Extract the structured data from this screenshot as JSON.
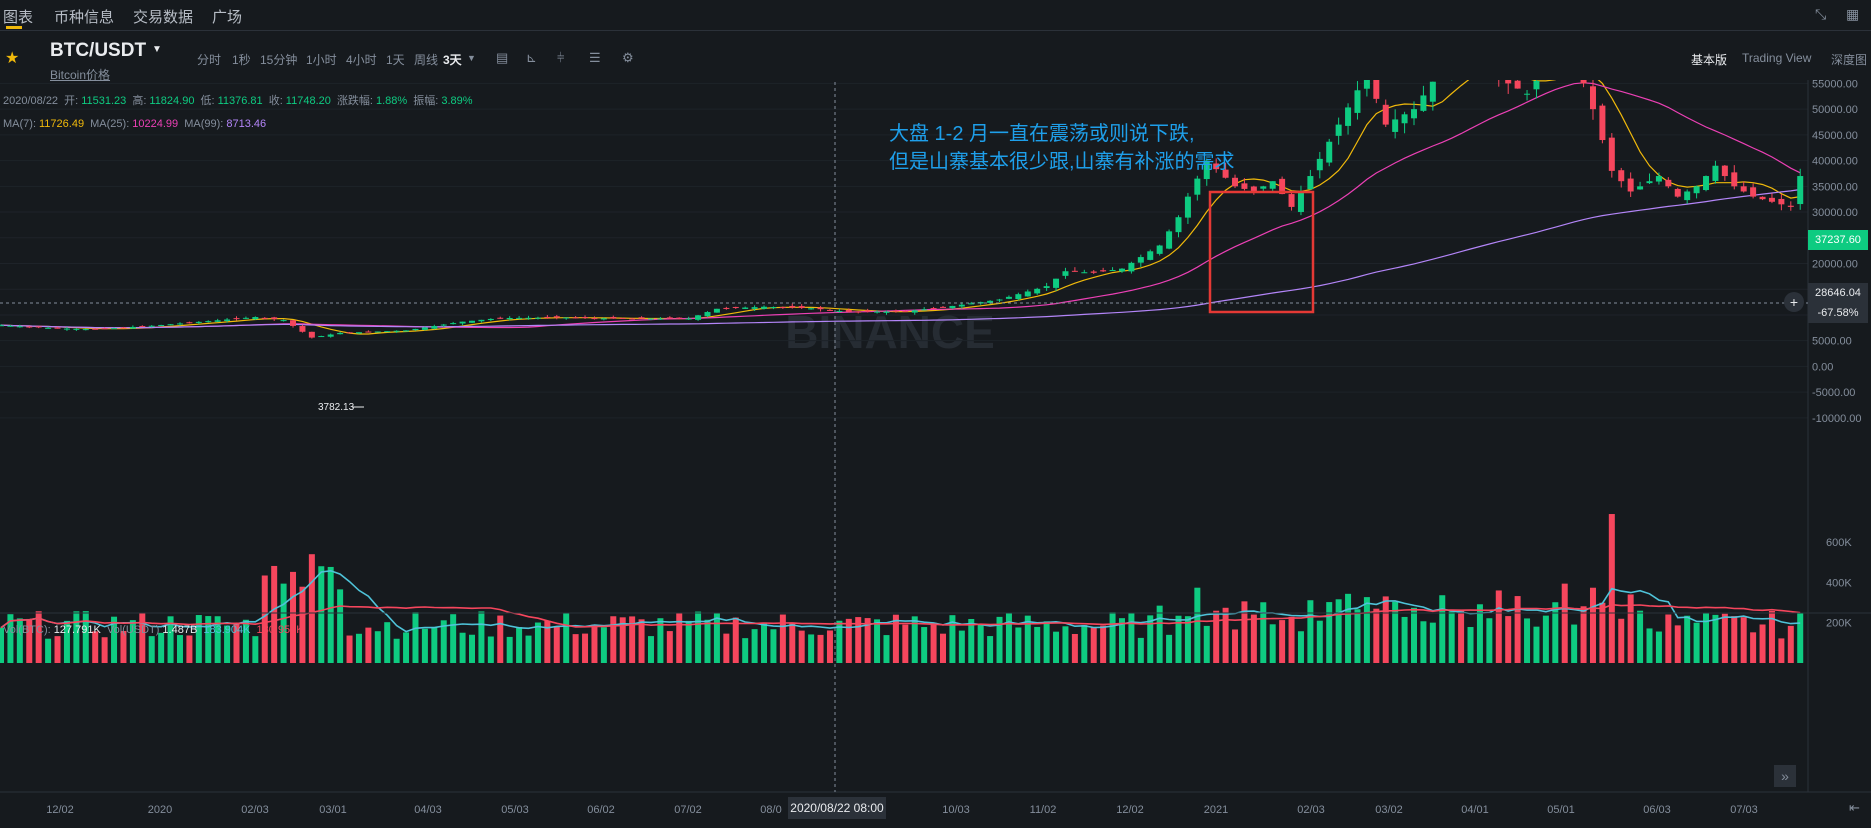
{
  "nav": {
    "tabs": [
      {
        "label": "图表",
        "active": true
      },
      {
        "label": "币种信息",
        "active": false
      },
      {
        "label": "交易数据",
        "active": false
      },
      {
        "label": "广场",
        "active": false
      }
    ]
  },
  "toolbar": {
    "pair": "BTC/USDT",
    "pair_sub": "Bitcoin价格",
    "intervals": [
      {
        "label": "分时",
        "active": false
      },
      {
        "label": "1秒",
        "active": false
      },
      {
        "label": "15分钟",
        "active": false
      },
      {
        "label": "1小时",
        "active": false
      },
      {
        "label": "4小时",
        "active": false
      },
      {
        "label": "1天",
        "active": false
      },
      {
        "label": "周线",
        "active": false
      },
      {
        "label": "3天",
        "active": true
      }
    ],
    "views": [
      {
        "label": "基本版",
        "active": true
      },
      {
        "label": "Trading View",
        "active": false
      },
      {
        "label": "深度图",
        "active": false
      }
    ]
  },
  "ohlc": {
    "date": "2020/08/22",
    "open_label": "开:",
    "open": "11531.23",
    "high_label": "高:",
    "high": "11824.90",
    "low_label": "低:",
    "low": "11376.81",
    "close_label": "收:",
    "close": "11748.20",
    "change_label": "涨跌幅:",
    "change": "1.88%",
    "amp_label": "振幅:",
    "amp": "3.89%"
  },
  "ma": {
    "ma7_label": "MA(7):",
    "ma7": "11726.49",
    "ma25_label": "MA(25):",
    "ma25": "10224.99",
    "ma99_label": "MA(99):",
    "ma99": "8713.46"
  },
  "vol": {
    "btc_label": "Vol(BTC):",
    "btc": "127.791K",
    "usdt_label": "Vol(USDT)",
    "usdt": "1.487B",
    "ma1": "183.904K",
    "ma2": "180.953K"
  },
  "annotation": {
    "line1": "大盘 1-2 月一直在震荡或则说下跌,",
    "line2": "但是山寨基本很少跟,山寨有补涨的需求"
  },
  "watermark": "BINANCE",
  "tags": {
    "current_price": "37237.60",
    "cross_price": "28646.04",
    "cross_pct": "-67.58%",
    "cross_time": "2020/08/22 08:00",
    "low_label": "3782.13"
  },
  "colors": {
    "up": "#0ecb81",
    "down": "#f6465d",
    "ma7": "#f0b90b",
    "ma25": "#eb40b5",
    "ma99": "#b385f8",
    "vol_ma1": "#4fc3d9",
    "vol_ma2": "#f6465d",
    "annotation": "#1e9fea",
    "box": "#e53935"
  },
  "chart_data": {
    "type": "candlestick",
    "title": "BTC/USDT",
    "interval": "3天",
    "y_ticks": [
      55000,
      50000,
      45000,
      40000,
      35000,
      30000,
      25000,
      20000,
      15000,
      10000,
      5000,
      0,
      -5000,
      -10000
    ],
    "y_tick_labels": [
      "55000.00",
      "50000.00",
      "45000.00",
      "40000.00",
      "35000.00",
      "30000.00",
      "25000.00",
      "20000.00",
      "15000.00",
      "10000.00",
      "5000.00",
      "0.00",
      "-5000.00",
      "-10000.00"
    ],
    "ylim": [
      -11000,
      58000
    ],
    "x_labels": [
      "12/02",
      "2020",
      "02/03",
      "03/01",
      "04/03",
      "05/03",
      "06/02",
      "07/02",
      "08/0",
      "10/03",
      "11/02",
      "12/02",
      "2021",
      "02/03",
      "03/02",
      "04/01",
      "05/01",
      "06/03",
      "07/03"
    ],
    "vol_ticks": [
      600000,
      400000,
      200000
    ],
    "vol_tick_labels": [
      "600K",
      "400K",
      "200K"
    ],
    "close_anchors": [
      [
        0,
        8000
      ],
      [
        6,
        7400
      ],
      [
        10,
        7200
      ],
      [
        16,
        7900
      ],
      [
        22,
        8800
      ],
      [
        27,
        9600
      ],
      [
        30,
        9000
      ],
      [
        33,
        5600
      ],
      [
        36,
        6500
      ],
      [
        43,
        7000
      ],
      [
        49,
        8700
      ],
      [
        53,
        9400
      ],
      [
        60,
        9500
      ],
      [
        65,
        9300
      ],
      [
        73,
        9300
      ],
      [
        76,
        11200
      ],
      [
        81,
        11600
      ],
      [
        86,
        11300
      ],
      [
        90,
        10600
      ],
      [
        96,
        10700
      ],
      [
        100,
        11500
      ],
      [
        106,
        13000
      ],
      [
        111,
        15600
      ],
      [
        113,
        18500
      ],
      [
        116,
        18200
      ],
      [
        119,
        19000
      ],
      [
        123,
        23500
      ],
      [
        125,
        29000
      ],
      [
        126,
        33000
      ],
      [
        128,
        40000
      ],
      [
        131,
        35000
      ],
      [
        133,
        34000
      ],
      [
        135,
        36000
      ],
      [
        137,
        31000
      ],
      [
        139,
        37000
      ],
      [
        142,
        47000
      ],
      [
        145,
        57000
      ],
      [
        147,
        47000
      ],
      [
        150,
        50000
      ],
      [
        153,
        58000
      ],
      [
        156,
        59000
      ],
      [
        159,
        56000
      ],
      [
        162,
        53000
      ],
      [
        164,
        58000
      ],
      [
        167,
        60000
      ],
      [
        169,
        50000
      ],
      [
        171,
        38000
      ],
      [
        173,
        34000
      ],
      [
        176,
        37000
      ],
      [
        178,
        33000
      ],
      [
        180,
        35000
      ],
      [
        182,
        39000
      ],
      [
        184,
        35000
      ],
      [
        186,
        33000
      ],
      [
        188,
        32000
      ],
      [
        190,
        31000
      ],
      [
        191,
        37000
      ]
    ]
  }
}
